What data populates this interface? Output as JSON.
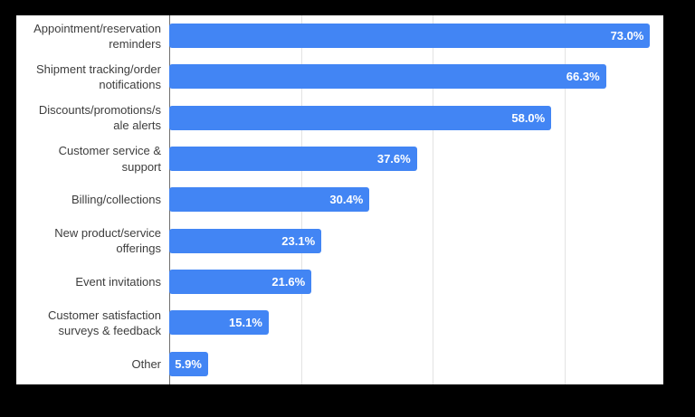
{
  "page": {
    "background_color": "#000000",
    "panel_background_color": "#ffffff"
  },
  "chart_data": {
    "type": "bar",
    "orientation": "horizontal",
    "title": "",
    "categories": [
      "Appointment/reservation reminders",
      "Shipment tracking/order notifications",
      "Discounts/promotions/sale alerts",
      "Customer service & support",
      "Billing/collections",
      "New product/service offerings",
      "Event invitations",
      "Customer satisfaction surveys & feedback",
      "Other"
    ],
    "category_display": [
      "Appointment/reservation\nreminders",
      "Shipment tracking/order\nnotifications",
      "Discounts/promotions/s\nale alerts",
      "Customer service &\nsupport",
      "Billing/collections",
      "New product/service\nofferings",
      "Event invitations",
      "Customer satisfaction\nsurveys & feedback",
      "Other"
    ],
    "values": [
      73.0,
      66.3,
      58.0,
      37.6,
      30.4,
      23.1,
      21.6,
      15.1,
      5.9
    ],
    "value_labels": [
      "73.0%",
      "66.3%",
      "58.0%",
      "37.6%",
      "30.4%",
      "23.1%",
      "21.6%",
      "15.1%",
      "5.9%"
    ],
    "xlabel": "",
    "ylabel": "",
    "xlim": [
      0,
      75
    ],
    "gridlines_at": [
      0,
      20,
      40,
      60
    ],
    "grid": true,
    "legend_position": "none",
    "bar_color": "#4285F4",
    "gridline_color": "#e3e3e3",
    "axis_line_color": "#6f6f6f",
    "category_label_color": "#3d3d3d",
    "value_label_color": "#ffffff"
  }
}
